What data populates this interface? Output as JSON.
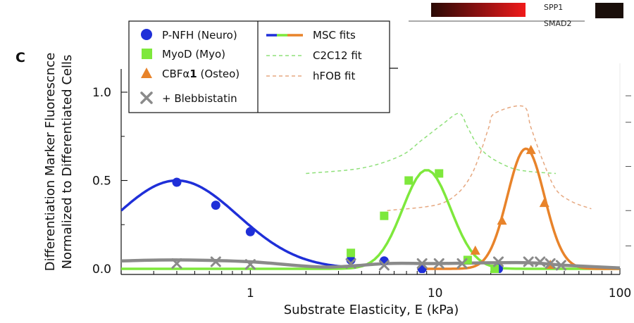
{
  "panel_letter": "C",
  "corner_fragments": [
    "SPP1",
    "SMAD2"
  ],
  "colors": {
    "neuro": "#1f2fd8",
    "myo": "#7ee83c",
    "osteo": "#e8832a",
    "blebb": "#8a8a8a",
    "c2c12_fit": "#8fe07a",
    "hfob_fit": "#e6a880"
  },
  "chart_data": {
    "type": "scatter",
    "title": "",
    "xlabel": "Substrate Elasticity, E (kPa)",
    "ylabel_line1": "Differentiation Marker Fluorescnce",
    "ylabel_line2": "Normalized to Differentiated Cells",
    "x_scale": "log",
    "xlim": [
      0.2,
      100
    ],
    "ylim": [
      -0.03,
      1.1
    ],
    "x_ticks": [
      1,
      10,
      100
    ],
    "x_tick_labels": [
      "1",
      "10",
      "100"
    ],
    "y_ticks": [
      0,
      0.5,
      1
    ],
    "y_tick_labels": [
      "0.0",
      "0.5",
      "1.0"
    ],
    "legend_position": "top-left",
    "legend_markers": [
      {
        "label": "P-NFH (Neuro)",
        "marker": "circle",
        "color": "#1f2fd8"
      },
      {
        "label": "MyoD (Myo)",
        "marker": "square",
        "color": "#7ee83c"
      },
      {
        "label_main": "CBFα",
        "label_bold": "1",
        "label_tail": " (Osteo)",
        "marker": "triangle",
        "color": "#e8832a"
      },
      {
        "label": "+ Blebbistatin",
        "marker": "x",
        "color": "#8a8a8a"
      }
    ],
    "legend_lines": [
      {
        "label": "MSC fits",
        "style": "solid-tricolor"
      },
      {
        "label": "C2C12 fit",
        "style": "dashed",
        "color": "#8fe07a"
      },
      {
        "label": "hFOB fit",
        "style": "dashed",
        "color": "#e6a880"
      }
    ],
    "series": [
      {
        "name": "P-NFH (Neuro)",
        "marker": "circle",
        "color": "#1f2fd8",
        "points": [
          [
            0.4,
            0.49
          ],
          [
            0.65,
            0.36
          ],
          [
            1.0,
            0.21
          ],
          [
            3.5,
            0.05
          ],
          [
            5.3,
            0.045
          ],
          [
            8.5,
            0.0
          ],
          [
            22,
            0.0
          ]
        ]
      },
      {
        "name": "MyoD (Myo)",
        "marker": "square",
        "color": "#7ee83c",
        "points": [
          [
            3.5,
            0.09
          ],
          [
            5.3,
            0.3
          ],
          [
            7.2,
            0.5
          ],
          [
            10.5,
            0.54
          ],
          [
            15,
            0.05
          ],
          [
            21,
            0.0
          ]
        ]
      },
      {
        "name": "CBFα1 (Osteo)",
        "marker": "triangle",
        "color": "#e8832a",
        "points": [
          [
            16.5,
            0.1
          ],
          [
            23,
            0.27
          ],
          [
            33,
            0.67
          ],
          [
            39,
            0.37
          ],
          [
            42,
            0.02
          ]
        ]
      },
      {
        "name": "+ Blebbistatin",
        "marker": "x",
        "color": "#8a8a8a",
        "points": [
          [
            0.4,
            0.03
          ],
          [
            0.65,
            0.04
          ],
          [
            1.0,
            0.025
          ],
          [
            3.5,
            0.03
          ],
          [
            5.3,
            0.02
          ],
          [
            8.5,
            0.03
          ],
          [
            10.5,
            0.03
          ],
          [
            14,
            0.03
          ],
          [
            22,
            0.04
          ],
          [
            32,
            0.04
          ],
          [
            37,
            0.04
          ],
          [
            42,
            0.03
          ],
          [
            48,
            0.02
          ]
        ]
      }
    ],
    "fits": [
      {
        "name": "MSC neuro fit",
        "color": "#1f2fd8",
        "amplitude": 0.5,
        "center": 0.4,
        "log_sigma": 0.33,
        "x_range": [
          0.2,
          3.5
        ]
      },
      {
        "name": "MSC myo fit",
        "color": "#7ee83c",
        "amplitude": 0.56,
        "center": 9.0,
        "log_sigma": 0.13,
        "x_range": [
          0.2,
          100
        ]
      },
      {
        "name": "MSC osteo fit",
        "color": "#e8832a",
        "amplitude": 0.68,
        "center": 31.0,
        "log_sigma": 0.1,
        "x_range": [
          8,
          100
        ]
      },
      {
        "name": "Blebbistatin fit",
        "color": "#8a8a8a",
        "curve": [
          [
            0.2,
            0.045
          ],
          [
            0.4,
            0.05
          ],
          [
            1.0,
            0.04
          ],
          [
            2.5,
            0.01
          ],
          [
            5.5,
            0.03
          ],
          [
            10,
            0.03
          ],
          [
            30,
            0.035
          ],
          [
            50,
            0.02
          ],
          [
            100,
            0.005
          ]
        ]
      }
    ],
    "reference_fits": [
      {
        "name": "C2C12 fit",
        "color": "#8fe07a",
        "curve": [
          [
            2.0,
            0.54
          ],
          [
            4.0,
            0.57
          ],
          [
            6.5,
            0.64
          ],
          [
            8.5,
            0.73
          ],
          [
            11,
            0.82
          ],
          [
            13.5,
            0.88
          ],
          [
            15,
            0.8
          ],
          [
            17,
            0.7
          ],
          [
            20,
            0.63
          ],
          [
            26,
            0.57
          ],
          [
            33,
            0.55
          ],
          [
            45,
            0.54
          ]
        ]
      },
      {
        "name": "hFOB fit",
        "color": "#e6a880",
        "curve": [
          [
            5.5,
            0.33
          ],
          [
            10,
            0.36
          ],
          [
            13,
            0.42
          ],
          [
            15.5,
            0.52
          ],
          [
            17.5,
            0.65
          ],
          [
            19.5,
            0.8
          ],
          [
            21,
            0.88
          ],
          [
            30,
            0.92
          ],
          [
            33,
            0.8
          ],
          [
            38,
            0.62
          ],
          [
            45,
            0.45
          ],
          [
            55,
            0.38
          ],
          [
            70,
            0.34
          ]
        ]
      }
    ]
  }
}
